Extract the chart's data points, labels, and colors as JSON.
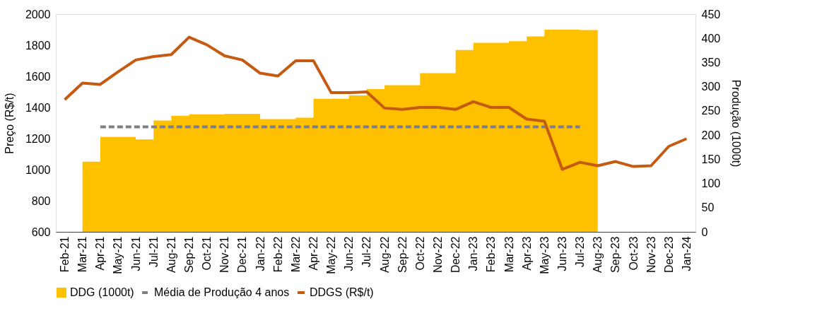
{
  "chart_data": {
    "type": "line",
    "ylabel": "Preço (R$/t)",
    "y2label": "Produção (1000t)",
    "categories": [
      "Feb-21",
      "Mar-21",
      "Apr-21",
      "May-21",
      "Jun-21",
      "Jul-21",
      "Aug-21",
      "Sep-21",
      "Oct-21",
      "Nov-21",
      "Dec-21",
      "Jan-22",
      "Feb-22",
      "Mar-22",
      "Apr-22",
      "May-22",
      "Jun-22",
      "Jul-22",
      "Aug-22",
      "Sep-22",
      "Oct-22",
      "Nov-22",
      "Dec-22",
      "Jan-23",
      "Feb-23",
      "Mar-23",
      "Apr-23",
      "May-23",
      "Jun-23",
      "Jul-23",
      "Aug-23",
      "Sep-23",
      "Oct-23",
      "Nov-23",
      "Dec-23",
      "Jan-24"
    ],
    "series": [
      {
        "name": "DDG (1000t)",
        "type": "area",
        "axis": "y2",
        "color": "#ffc000",
        "values": [
          null,
          145,
          196,
          196,
          191,
          230,
          240,
          243,
          243,
          244,
          244,
          233,
          233,
          236,
          275,
          275,
          282,
          295,
          303,
          303,
          328,
          328,
          376,
          391,
          391,
          394,
          404,
          418,
          418,
          417,
          417,
          null,
          null,
          null,
          null,
          null
        ]
      },
      {
        "name": "DDGS (R$/t)",
        "type": "line",
        "color": "#c55a11",
        "values": [
          1450,
          1557,
          1548,
          1629,
          1705,
          1727,
          1740,
          1852,
          1803,
          1732,
          1705,
          1620,
          1602,
          1700,
          1700,
          1495,
          1495,
          1500,
          1396,
          1387,
          1400,
          1400,
          1387,
          1437,
          1400,
          1400,
          1325,
          1311,
          1002,
          1047,
          1025,
          1052,
          1020,
          1025,
          1150,
          1199
        ]
      },
      {
        "name": "Média de Produção 4 anos",
        "axis": "y2",
        "line_style": "dashed",
        "color": "#808080",
        "values": [
          null,
          null,
          217,
          217,
          217,
          217,
          217,
          217,
          217,
          217,
          217,
          217,
          217,
          217,
          217,
          217,
          217,
          217,
          217,
          217,
          217,
          217,
          217,
          217,
          217,
          217,
          217,
          217,
          217,
          217,
          null,
          null,
          null,
          null,
          null,
          null
        ]
      }
    ],
    "ylim": [
      600,
      2000
    ],
    "yticks": [
      600,
      800,
      1000,
      1200,
      1400,
      1600,
      1800,
      2000
    ],
    "y2lim": [
      0,
      450
    ],
    "y2ticks": [
      0,
      50,
      100,
      150,
      200,
      250,
      300,
      350,
      400,
      450
    ],
    "grid": false,
    "legend": "bottom"
  }
}
